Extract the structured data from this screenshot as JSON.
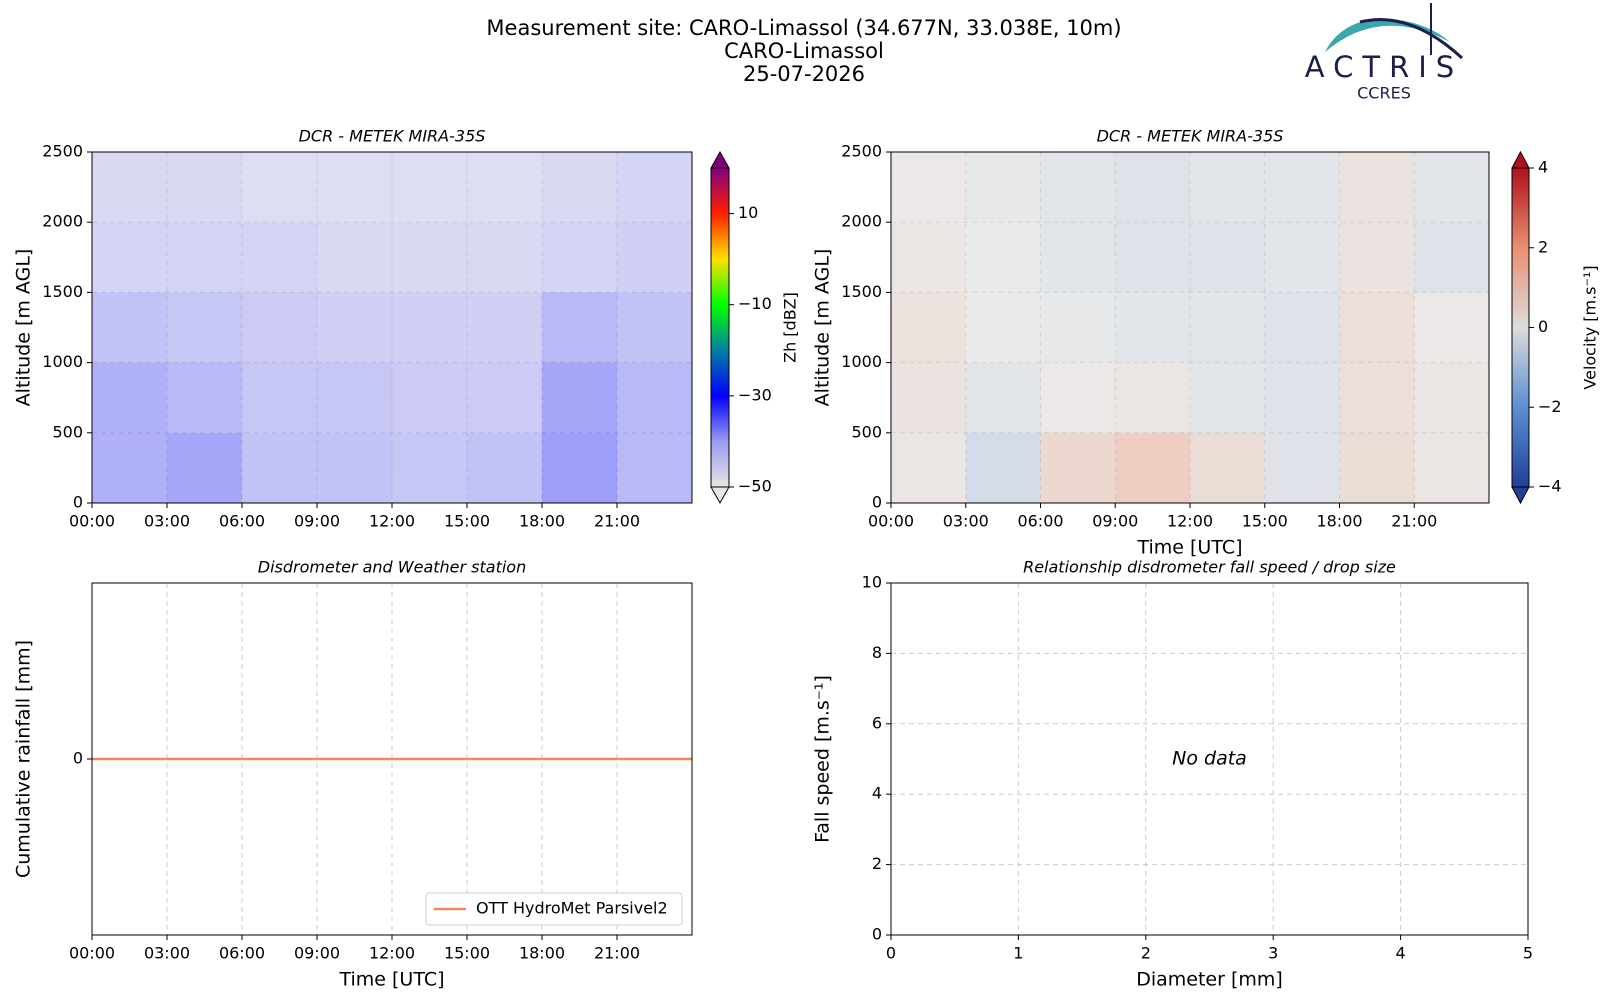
{
  "header": {
    "title_lines": [
      "Measurement site: CARO-Limassol (34.677N, 33.038E, 10m)",
      "CARO-Limassol",
      "25-07-2026"
    ]
  },
  "logo": {
    "name": "ACTRIS",
    "sub": "CCRES"
  },
  "chart_data": [
    {
      "type": "heatmap",
      "title": "DCR - METEK MIRA-35S",
      "ylabel": "Altitude [m AGL]",
      "xlim": [
        0,
        24
      ],
      "xticks": [
        {
          "value": 0,
          "label": "00:00"
        },
        {
          "value": 3,
          "label": "03:00"
        },
        {
          "value": 6,
          "label": "06:00"
        },
        {
          "value": 9,
          "label": "09:00"
        },
        {
          "value": 12,
          "label": "12:00"
        },
        {
          "value": 15,
          "label": "15:00"
        },
        {
          "value": 18,
          "label": "18:00"
        },
        {
          "value": 21,
          "label": "21:00"
        }
      ],
      "ylim": [
        0,
        2500
      ],
      "yticks": [
        0,
        500,
        1000,
        1500,
        2000,
        2500
      ],
      "grid": true,
      "x_edges": [
        0,
        3,
        6,
        9,
        12,
        15,
        18,
        21,
        24
      ],
      "y_edges": [
        0,
        500,
        1000,
        1500,
        2000,
        2500
      ],
      "z": [
        [
          -38,
          -37,
          -40,
          -40,
          -41,
          -40,
          -36,
          -39
        ],
        [
          -38,
          -39,
          -41,
          -41,
          -42,
          -42,
          -37,
          -39
        ],
        [
          -40,
          -41,
          -42,
          -43,
          -43,
          -43,
          -39,
          -40
        ],
        [
          -44,
          -44,
          -44,
          -45,
          -45,
          -45,
          -44,
          -43
        ],
        [
          -45,
          -45,
          -46,
          -46,
          -46,
          -46,
          -45,
          -44
        ]
      ],
      "colorbar": {
        "label": "Zh [dBZ]",
        "clim": [
          -50,
          20
        ],
        "cticks": [
          {
            "value": -50,
            "label": "−50"
          },
          {
            "value": -30,
            "label": "−30"
          },
          {
            "value": -10,
            "label": "−10"
          },
          10
        ],
        "colormap": [
          "#e6e6e6",
          "#9a9af0",
          "#0000ff",
          "#0080a0",
          "#00ff00",
          "#ffe000",
          "#ff2000",
          "#800080"
        ]
      }
    },
    {
      "type": "heatmap",
      "title": "DCR - METEK MIRA-35S",
      "ylabel": "Altitude [m AGL]",
      "xlabel": "Time [UTC]",
      "xlim": [
        0,
        24
      ],
      "xticks": [
        {
          "value": 0,
          "label": "00:00"
        },
        {
          "value": 3,
          "label": "03:00"
        },
        {
          "value": 6,
          "label": "06:00"
        },
        {
          "value": 9,
          "label": "09:00"
        },
        {
          "value": 12,
          "label": "12:00"
        },
        {
          "value": 15,
          "label": "15:00"
        },
        {
          "value": 18,
          "label": "18:00"
        },
        {
          "value": 21,
          "label": "21:00"
        }
      ],
      "ylim": [
        0,
        2500
      ],
      "yticks": [
        0,
        500,
        1000,
        1500,
        2000,
        2500
      ],
      "grid": true,
      "x_edges": [
        0,
        3,
        6,
        9,
        12,
        15,
        18,
        21,
        24
      ],
      "y_edges": [
        0,
        500,
        1000,
        1500,
        2000,
        2500
      ],
      "z": [
        [
          0.2,
          -0.6,
          0.8,
          1.2,
          0.6,
          -0.3,
          0.6,
          0.2
        ],
        [
          0.3,
          -0.2,
          0.1,
          0.2,
          -0.2,
          -0.3,
          0.5,
          0.2
        ],
        [
          0.4,
          0,
          -0.1,
          -0.2,
          -0.2,
          -0.3,
          0.5,
          0.1
        ],
        [
          0.2,
          0,
          -0.2,
          -0.3,
          -0.3,
          -0.2,
          0.3,
          -0.3
        ],
        [
          0.1,
          -0.1,
          -0.2,
          -0.3,
          -0.2,
          -0.2,
          0.3,
          -0.2
        ]
      ],
      "colorbar": {
        "label": "Velocity [m.s⁻¹]",
        "clim": [
          -4,
          4
        ],
        "cticks": [
          {
            "value": -4,
            "label": "−4"
          },
          {
            "value": -2,
            "label": "−2"
          },
          0,
          2,
          4
        ],
        "colormap": [
          "#22409a",
          "#5b8fd1",
          "#dcdcdc",
          "#e8906f",
          "#b0101e"
        ]
      }
    },
    {
      "type": "line",
      "title": "Disdrometer and Weather station",
      "ylabel": "Cumulative rainfall [mm]",
      "xlabel": "Time [UTC]",
      "xlim": [
        0,
        24
      ],
      "xticks": [
        {
          "value": 0,
          "label": "00:00"
        },
        {
          "value": 3,
          "label": "03:00"
        },
        {
          "value": 6,
          "label": "06:00"
        },
        {
          "value": 9,
          "label": "09:00"
        },
        {
          "value": 12,
          "label": "12:00"
        },
        {
          "value": 15,
          "label": "15:00"
        },
        {
          "value": 18,
          "label": "18:00"
        },
        {
          "value": 21,
          "label": "21:00"
        }
      ],
      "ylim": [
        -1,
        1
      ],
      "yticks": [
        0
      ],
      "grid": true,
      "legend": "lower right",
      "x": [
        0,
        24
      ],
      "series": [
        {
          "name": "OTT HydroMet Parsivel2",
          "color": "#f08a5d",
          "values": [
            0,
            0
          ]
        }
      ]
    },
    {
      "type": "scatter",
      "title": "Relationship disdrometer fall speed / drop size",
      "ylabel": "Fall speed [m.s⁻¹]",
      "xlabel": "Diameter [mm]",
      "xlim": [
        0,
        5
      ],
      "xticks": [
        0,
        1,
        2,
        3,
        4,
        5
      ],
      "ylim": [
        0,
        10
      ],
      "yticks": [
        0,
        2,
        4,
        6,
        8,
        10
      ],
      "grid": true,
      "annotation": "No data",
      "x": [],
      "values": []
    }
  ]
}
